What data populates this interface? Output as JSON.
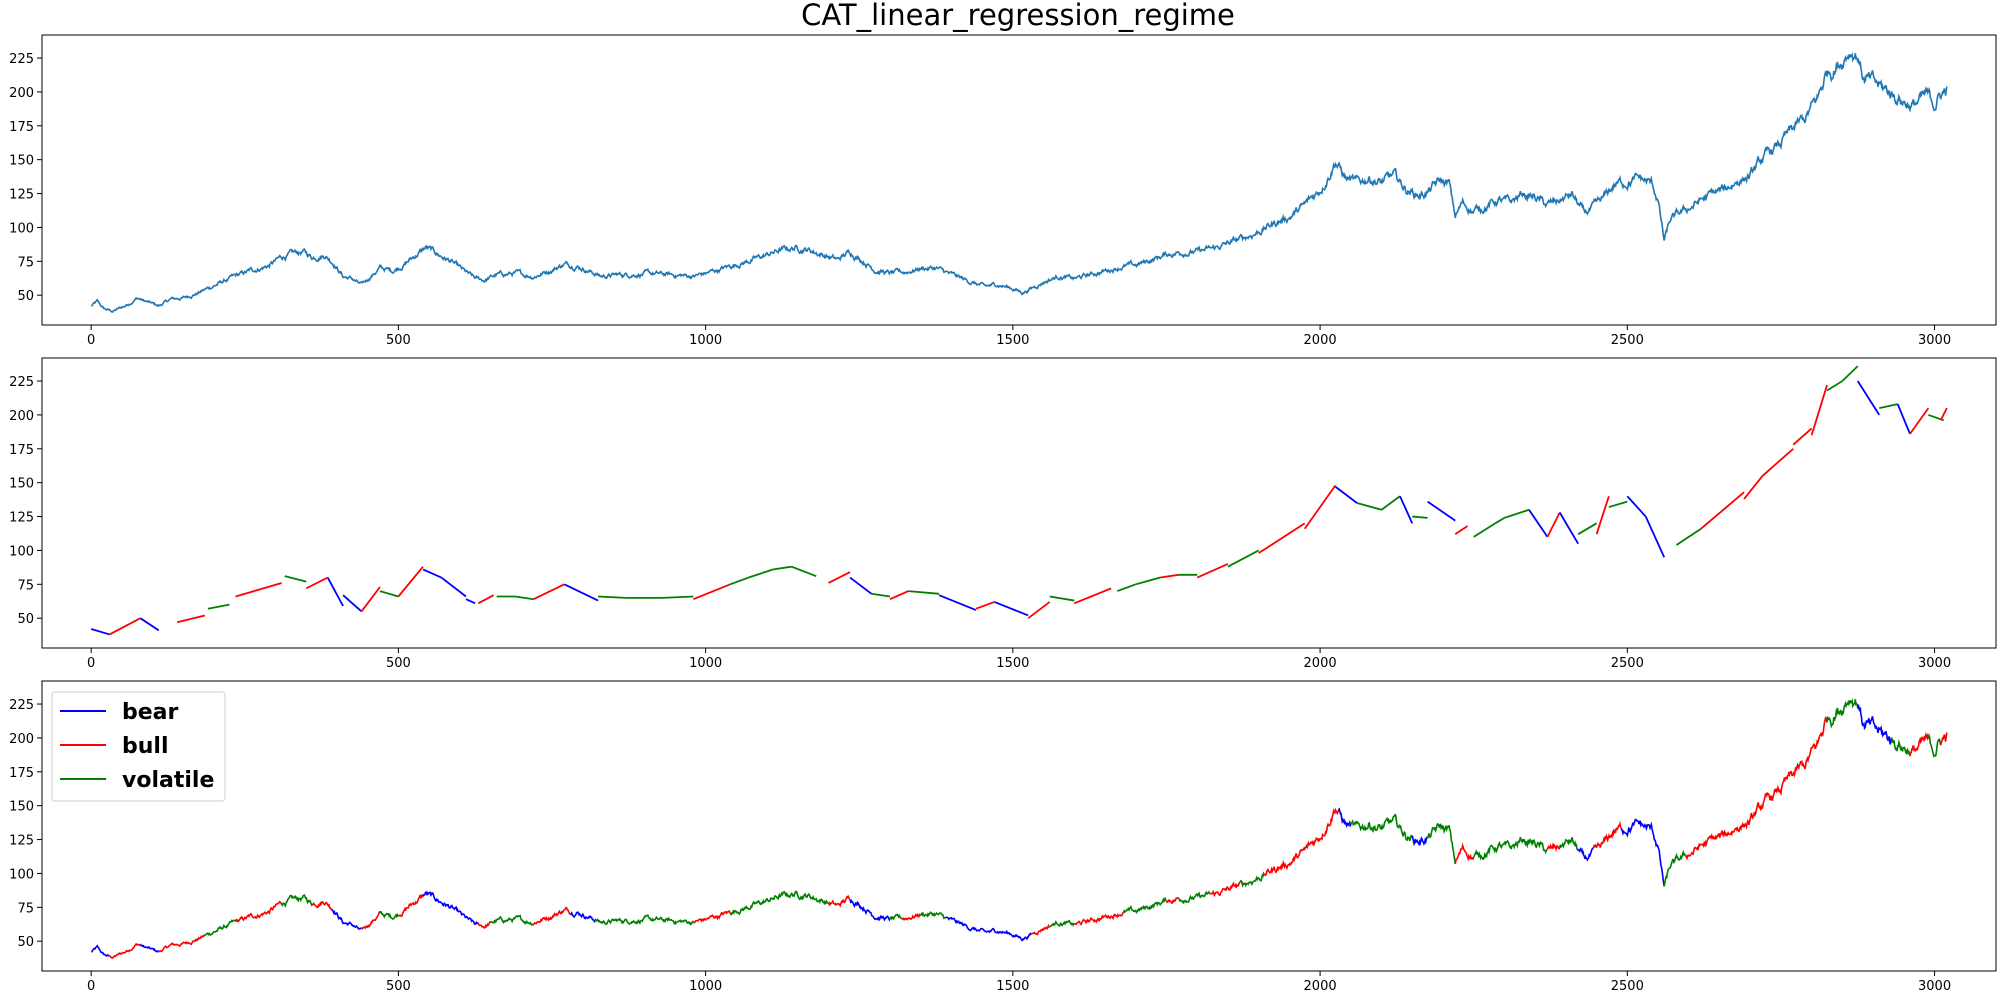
{
  "chart_data": {
    "title": "CAT_linear_regression_regime",
    "type": "line",
    "xlim": [
      -80,
      3100
    ],
    "ylim": [
      28,
      242
    ],
    "x_ticks": [
      0,
      500,
      1000,
      1500,
      2000,
      2500,
      3000
    ],
    "y_ticks": [
      50,
      75,
      100,
      125,
      150,
      175,
      200,
      225
    ],
    "colors": {
      "series": "#1f77b4",
      "bear": "#0000ff",
      "bull": "#ff0000",
      "volatile": "#008000"
    },
    "price_anchors": [
      [
        0,
        42
      ],
      [
        10,
        45
      ],
      [
        20,
        40
      ],
      [
        35,
        38
      ],
      [
        55,
        42
      ],
      [
        75,
        48
      ],
      [
        90,
        45
      ],
      [
        110,
        42
      ],
      [
        130,
        47
      ],
      [
        150,
        48
      ],
      [
        175,
        52
      ],
      [
        200,
        57
      ],
      [
        230,
        63
      ],
      [
        260,
        68
      ],
      [
        290,
        72
      ],
      [
        310,
        78
      ],
      [
        325,
        80
      ],
      [
        345,
        82
      ],
      [
        360,
        78
      ],
      [
        380,
        80
      ],
      [
        395,
        74
      ],
      [
        410,
        64
      ],
      [
        425,
        62
      ],
      [
        440,
        57
      ],
      [
        455,
        64
      ],
      [
        470,
        70
      ],
      [
        490,
        68
      ],
      [
        510,
        73
      ],
      [
        530,
        80
      ],
      [
        545,
        85
      ],
      [
        565,
        80
      ],
      [
        585,
        75
      ],
      [
        605,
        68
      ],
      [
        625,
        62
      ],
      [
        640,
        61
      ],
      [
        660,
        65
      ],
      [
        690,
        66
      ],
      [
        720,
        64
      ],
      [
        745,
        68
      ],
      [
        770,
        73
      ],
      [
        790,
        72
      ],
      [
        810,
        68
      ],
      [
        830,
        64
      ],
      [
        860,
        65
      ],
      [
        900,
        66
      ],
      [
        940,
        65
      ],
      [
        980,
        64
      ],
      [
        1000,
        66
      ],
      [
        1030,
        70
      ],
      [
        1060,
        74
      ],
      [
        1090,
        78
      ],
      [
        1120,
        83
      ],
      [
        1145,
        85
      ],
      [
        1165,
        84
      ],
      [
        1190,
        80
      ],
      [
        1215,
        76
      ],
      [
        1235,
        82
      ],
      [
        1255,
        76
      ],
      [
        1275,
        69
      ],
      [
        1300,
        66
      ],
      [
        1325,
        67
      ],
      [
        1350,
        70
      ],
      [
        1375,
        70
      ],
      [
        1400,
        65
      ],
      [
        1430,
        60
      ],
      [
        1455,
        56
      ],
      [
        1475,
        58
      ],
      [
        1500,
        55
      ],
      [
        1515,
        52
      ],
      [
        1530,
        55
      ],
      [
        1550,
        60
      ],
      [
        1575,
        64
      ],
      [
        1600,
        62
      ],
      [
        1625,
        65
      ],
      [
        1650,
        68
      ],
      [
        1675,
        71
      ],
      [
        1700,
        72
      ],
      [
        1725,
        76
      ],
      [
        1750,
        80
      ],
      [
        1775,
        82
      ],
      [
        1800,
        82
      ],
      [
        1825,
        84
      ],
      [
        1850,
        88
      ],
      [
        1875,
        92
      ],
      [
        1900,
        97
      ],
      [
        1925,
        103
      ],
      [
        1950,
        108
      ],
      [
        1975,
        116
      ],
      [
        2000,
        128
      ],
      [
        2015,
        140
      ],
      [
        2025,
        150
      ],
      [
        2040,
        137
      ],
      [
        2060,
        132
      ],
      [
        2080,
        137
      ],
      [
        2100,
        133
      ],
      [
        2120,
        138
      ],
      [
        2140,
        128
      ],
      [
        2160,
        124
      ],
      [
        2175,
        126
      ],
      [
        2195,
        134
      ],
      [
        2210,
        132
      ],
      [
        2220,
        108
      ],
      [
        2232,
        118
      ],
      [
        2250,
        112
      ],
      [
        2270,
        116
      ],
      [
        2290,
        120
      ],
      [
        2310,
        118
      ],
      [
        2330,
        125
      ],
      [
        2350,
        122
      ],
      [
        2370,
        116
      ],
      [
        2390,
        120
      ],
      [
        2410,
        124
      ],
      [
        2430,
        110
      ],
      [
        2445,
        114
      ],
      [
        2460,
        120
      ],
      [
        2480,
        132
      ],
      [
        2500,
        134
      ],
      [
        2520,
        136
      ],
      [
        2540,
        132
      ],
      [
        2550,
        120
      ],
      [
        2560,
        90
      ],
      [
        2570,
        105
      ],
      [
        2585,
        110
      ],
      [
        2600,
        114
      ],
      [
        2620,
        120
      ],
      [
        2640,
        125
      ],
      [
        2660,
        128
      ],
      [
        2680,
        135
      ],
      [
        2700,
        138
      ],
      [
        2720,
        150
      ],
      [
        2745,
        160
      ],
      [
        2770,
        172
      ],
      [
        2790,
        180
      ],
      [
        2810,
        195
      ],
      [
        2825,
        215
      ],
      [
        2845,
        222
      ],
      [
        2862,
        232
      ],
      [
        2875,
        228
      ],
      [
        2885,
        210
      ],
      [
        2905,
        205
      ],
      [
        2925,
        200
      ],
      [
        2945,
        195
      ],
      [
        2965,
        190
      ],
      [
        2985,
        196
      ],
      [
        3000,
        192
      ],
      [
        3010,
        198
      ],
      [
        3020,
        202
      ]
    ],
    "regime_segments": [
      [
        "bear",
        0,
        30
      ],
      [
        "bull",
        30,
        80
      ],
      [
        "bear",
        80,
        110
      ],
      [
        "bull",
        110,
        185
      ],
      [
        "volatile",
        185,
        235
      ],
      [
        "bull",
        235,
        310
      ],
      [
        "volatile",
        310,
        360
      ],
      [
        "bull",
        360,
        390
      ],
      [
        "bear",
        390,
        440
      ],
      [
        "bull",
        440,
        470
      ],
      [
        "volatile",
        470,
        500
      ],
      [
        "bull",
        500,
        540
      ],
      [
        "bear",
        540,
        630
      ],
      [
        "bull",
        630,
        650
      ],
      [
        "volatile",
        650,
        780
      ],
      [
        "bull",
        720,
        780
      ],
      [
        "bear",
        780,
        820
      ],
      [
        "volatile",
        820,
        980
      ],
      [
        "bull",
        980,
        1040
      ],
      [
        "volatile",
        1040,
        1200
      ],
      [
        "bull",
        1200,
        1235
      ],
      [
        "bear",
        1235,
        1300
      ],
      [
        "volatile",
        1300,
        1320
      ],
      [
        "bull",
        1320,
        1350
      ],
      [
        "volatile",
        1350,
        1390
      ],
      [
        "bear",
        1390,
        1530
      ],
      [
        "bull",
        1530,
        1560
      ],
      [
        "volatile",
        1560,
        1600
      ],
      [
        "bull",
        1600,
        1680
      ],
      [
        "volatile",
        1680,
        1750
      ],
      [
        "bull",
        1750,
        1770
      ],
      [
        "volatile",
        1770,
        1820
      ],
      [
        "bull",
        1820,
        1870
      ],
      [
        "volatile",
        1870,
        1910
      ],
      [
        "bull",
        1910,
        2030
      ],
      [
        "bear",
        2030,
        2050
      ],
      [
        "volatile",
        2050,
        2150
      ],
      [
        "bear",
        2150,
        2175
      ],
      [
        "volatile",
        2175,
        2220
      ],
      [
        "bull",
        2220,
        2250
      ],
      [
        "volatile",
        2250,
        2370
      ],
      [
        "bull",
        2370,
        2390
      ],
      [
        "volatile",
        2390,
        2420
      ],
      [
        "bear",
        2420,
        2445
      ],
      [
        "bull",
        2445,
        2490
      ],
      [
        "bear",
        2490,
        2560
      ],
      [
        "volatile",
        2560,
        2595
      ],
      [
        "bull",
        2595,
        2825
      ],
      [
        "volatile",
        2825,
        2875
      ],
      [
        "bear",
        2875,
        2930
      ],
      [
        "volatile",
        2930,
        2960
      ],
      [
        "bull",
        2960,
        2990
      ],
      [
        "volatile",
        2990,
        3010
      ],
      [
        "bull",
        3010,
        3020
      ]
    ],
    "regression_lines": [
      [
        "bear",
        0,
        42,
        30,
        38
      ],
      [
        "bull",
        30,
        38,
        80,
        50
      ],
      [
        "bear",
        80,
        50,
        110,
        41
      ],
      [
        "bull",
        140,
        47,
        185,
        52
      ],
      [
        "volatile",
        190,
        57,
        225,
        60
      ],
      [
        "bull",
        235,
        66,
        310,
        76
      ],
      [
        "volatile",
        315,
        81,
        350,
        77
      ],
      [
        "bull",
        350,
        72,
        385,
        80
      ],
      [
        "bear",
        385,
        80,
        410,
        59
      ],
      [
        "bear",
        410,
        67,
        440,
        55
      ],
      [
        "bull",
        440,
        55,
        470,
        73
      ],
      [
        "volatile",
        470,
        70,
        500,
        66
      ],
      [
        "bull",
        500,
        66,
        540,
        88
      ],
      [
        "bear",
        540,
        86,
        570,
        80
      ],
      [
        "bear",
        570,
        80,
        610,
        66
      ],
      [
        "bear",
        610,
        64,
        625,
        61
      ],
      [
        "bull",
        630,
        61,
        655,
        67
      ],
      [
        "volatile",
        660,
        66,
        690,
        66
      ],
      [
        "volatile",
        690,
        66,
        720,
        64
      ],
      [
        "bull",
        720,
        64,
        770,
        75
      ],
      [
        "bear",
        770,
        75,
        825,
        63
      ],
      [
        "volatile",
        825,
        66,
        870,
        65
      ],
      [
        "volatile",
        870,
        65,
        930,
        65
      ],
      [
        "volatile",
        930,
        65,
        980,
        66
      ],
      [
        "bull",
        980,
        64,
        1040,
        75
      ],
      [
        "volatile",
        1040,
        75,
        1070,
        80
      ],
      [
        "volatile",
        1070,
        80,
        1110,
        86
      ],
      [
        "volatile",
        1110,
        86,
        1140,
        88
      ],
      [
        "volatile",
        1140,
        88,
        1180,
        81
      ],
      [
        "bull",
        1200,
        76,
        1235,
        84
      ],
      [
        "bear",
        1235,
        80,
        1270,
        68
      ],
      [
        "volatile",
        1270,
        68,
        1300,
        66
      ],
      [
        "bull",
        1300,
        64,
        1330,
        70
      ],
      [
        "volatile",
        1330,
        70,
        1380,
        68
      ],
      [
        "bear",
        1380,
        67,
        1440,
        56
      ],
      [
        "bull",
        1440,
        57,
        1470,
        62
      ],
      [
        "bear",
        1470,
        62,
        1525,
        52
      ],
      [
        "bull",
        1525,
        50,
        1560,
        62
      ],
      [
        "volatile",
        1560,
        66,
        1600,
        63
      ],
      [
        "bull",
        1600,
        61,
        1660,
        72
      ],
      [
        "volatile",
        1670,
        70,
        1700,
        75
      ],
      [
        "volatile",
        1700,
        75,
        1740,
        80
      ],
      [
        "bull",
        1740,
        80,
        1770,
        82
      ],
      [
        "volatile",
        1770,
        82,
        1800,
        82
      ],
      [
        "bull",
        1800,
        80,
        1850,
        90
      ],
      [
        "volatile",
        1850,
        88,
        1900,
        100
      ],
      [
        "bull",
        1900,
        98,
        1975,
        120
      ],
      [
        "bull",
        1975,
        116,
        2025,
        148
      ],
      [
        "bear",
        2025,
        147,
        2060,
        135
      ],
      [
        "volatile",
        2060,
        135,
        2100,
        130
      ],
      [
        "volatile",
        2100,
        130,
        2130,
        140
      ],
      [
        "bear",
        2130,
        140,
        2150,
        120
      ],
      [
        "volatile",
        2150,
        125,
        2175,
        124
      ],
      [
        "bear",
        2175,
        136,
        2220,
        122
      ],
      [
        "bull",
        2220,
        112,
        2240,
        118
      ],
      [
        "volatile",
        2250,
        110,
        2285,
        120
      ],
      [
        "volatile",
        2285,
        120,
        2300,
        124
      ],
      [
        "volatile",
        2300,
        124,
        2340,
        130
      ],
      [
        "bear",
        2340,
        130,
        2370,
        110
      ],
      [
        "bull",
        2370,
        110,
        2390,
        128
      ],
      [
        "bear",
        2390,
        128,
        2420,
        105
      ],
      [
        "volatile",
        2420,
        112,
        2450,
        120
      ],
      [
        "bull",
        2450,
        112,
        2470,
        140
      ],
      [
        "volatile",
        2470,
        132,
        2500,
        136
      ],
      [
        "bear",
        2500,
        140,
        2530,
        125
      ],
      [
        "bear",
        2530,
        125,
        2560,
        95
      ],
      [
        "volatile",
        2580,
        104,
        2620,
        116
      ],
      [
        "bull",
        2620,
        116,
        2690,
        143
      ],
      [
        "bull",
        2690,
        138,
        2720,
        155
      ],
      [
        "bull",
        2720,
        155,
        2770,
        175
      ],
      [
        "bull",
        2770,
        178,
        2800,
        190
      ],
      [
        "bull",
        2800,
        185,
        2825,
        222
      ],
      [
        "volatile",
        2825,
        218,
        2850,
        225
      ],
      [
        "volatile",
        2850,
        225,
        2875,
        236
      ],
      [
        "bear",
        2875,
        225,
        2910,
        200
      ],
      [
        "volatile",
        2910,
        205,
        2940,
        208
      ],
      [
        "bear",
        2940,
        208,
        2960,
        186
      ],
      [
        "bull",
        2960,
        186,
        2990,
        205
      ],
      [
        "volatile",
        2990,
        200,
        3015,
        196
      ],
      [
        "bull",
        3010,
        196,
        3020,
        205
      ]
    ],
    "legend": [
      {
        "name": "bear",
        "label": "bear",
        "color": "#0000ff"
      },
      {
        "name": "bull",
        "label": "bull",
        "color": "#ff0000"
      },
      {
        "name": "volatile",
        "label": "volatile",
        "color": "#008000"
      }
    ],
    "legend_position": "upper-left (bottom panel)"
  }
}
